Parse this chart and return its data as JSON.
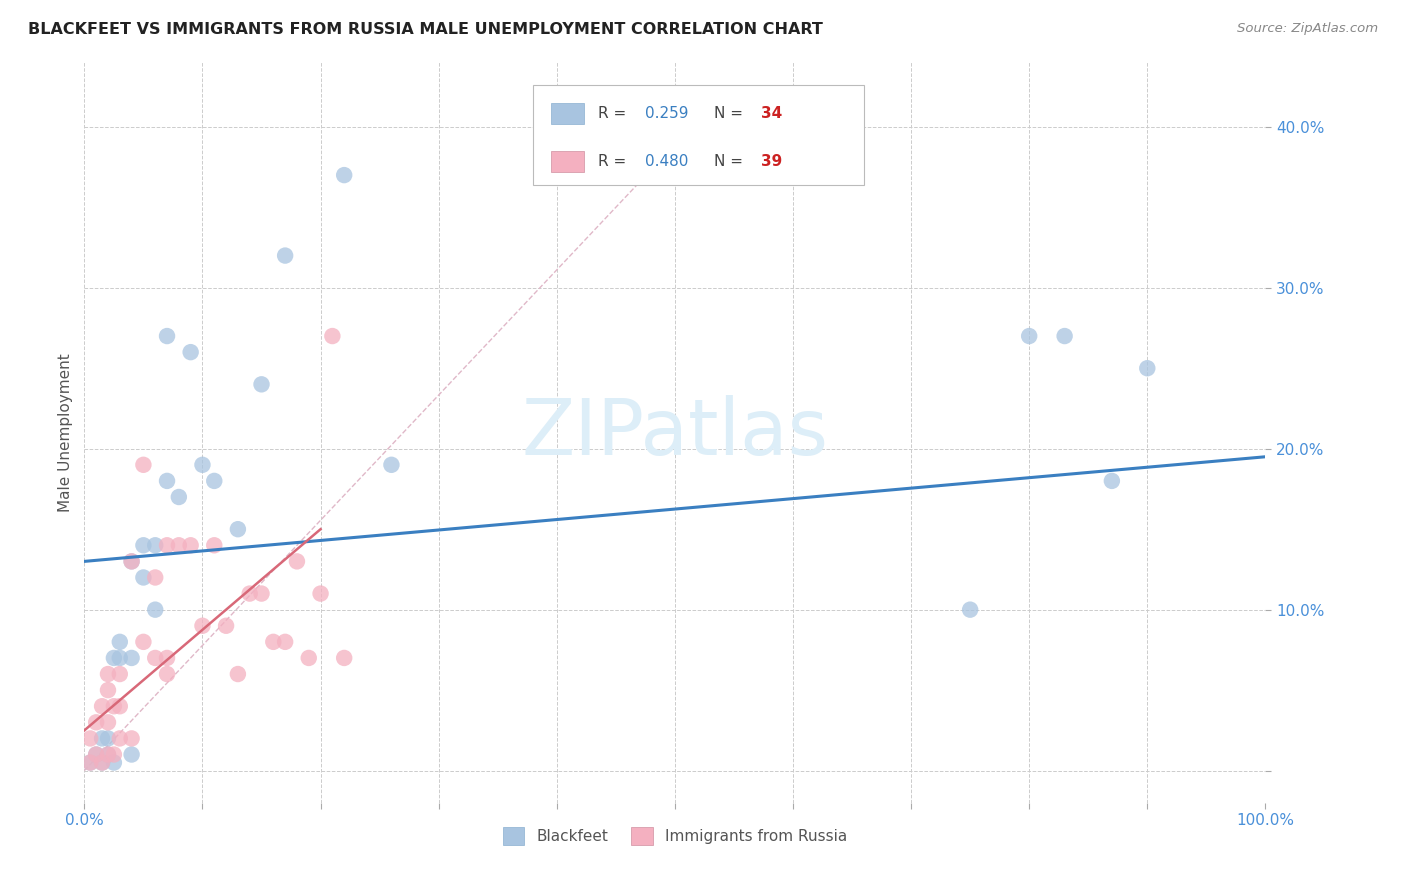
{
  "title": "BLACKFEET VS IMMIGRANTS FROM RUSSIA MALE UNEMPLOYMENT CORRELATION CHART",
  "source": "Source: ZipAtlas.com",
  "ylabel": "Male Unemployment",
  "xlim": [
    0,
    1.0
  ],
  "ylim": [
    -0.02,
    0.44
  ],
  "xticks": [
    0.0,
    0.1,
    0.2,
    0.3,
    0.4,
    0.5,
    0.6,
    0.7,
    0.8,
    0.9,
    1.0
  ],
  "xticklabels": [
    "0.0%",
    "",
    "",
    "",
    "",
    "",
    "",
    "",
    "",
    "",
    "100.0%"
  ],
  "yticks": [
    0.0,
    0.1,
    0.2,
    0.3,
    0.4
  ],
  "yticklabels": [
    "",
    "10.0%",
    "20.0%",
    "30.0%",
    "40.0%"
  ],
  "scatter_color1": "#a8c4e0",
  "scatter_color2": "#f4b0c0",
  "line_color1": "#3a7fc1",
  "line_color2": "#d86878",
  "dashed_color": "#e0b8c8",
  "watermark_color": "#ddeef8",
  "background_color": "#ffffff",
  "grid_color": "#cccccc",
  "tick_label_color": "#4a90d9",
  "bottom_legend_label1": "Blackfeet",
  "bottom_legend_label2": "Immigrants from Russia",
  "legend_R_color": "#555555",
  "legend_val_color": "#3a7fc1",
  "legend_N_label_color": "#555555",
  "legend_N_val_color": "#cc2222",
  "blue_x": [
    0.005,
    0.01,
    0.015,
    0.015,
    0.02,
    0.02,
    0.025,
    0.025,
    0.03,
    0.03,
    0.04,
    0.04,
    0.04,
    0.05,
    0.05,
    0.06,
    0.06,
    0.07,
    0.07,
    0.08,
    0.09,
    0.1,
    0.11,
    0.13,
    0.15,
    0.17,
    0.22,
    0.26,
    0.75,
    0.8,
    0.83,
    0.87,
    0.9
  ],
  "blue_y": [
    0.005,
    0.01,
    0.005,
    0.02,
    0.01,
    0.02,
    0.005,
    0.07,
    0.07,
    0.08,
    0.01,
    0.07,
    0.13,
    0.12,
    0.14,
    0.1,
    0.14,
    0.27,
    0.18,
    0.17,
    0.26,
    0.19,
    0.18,
    0.15,
    0.24,
    0.32,
    0.37,
    0.19,
    0.1,
    0.27,
    0.27,
    0.18,
    0.25
  ],
  "pink_x": [
    0.005,
    0.005,
    0.01,
    0.01,
    0.015,
    0.015,
    0.02,
    0.02,
    0.02,
    0.02,
    0.025,
    0.025,
    0.03,
    0.03,
    0.03,
    0.04,
    0.04,
    0.05,
    0.05,
    0.06,
    0.06,
    0.07,
    0.07,
    0.07,
    0.08,
    0.09,
    0.1,
    0.11,
    0.12,
    0.13,
    0.14,
    0.15,
    0.16,
    0.17,
    0.18,
    0.19,
    0.2,
    0.21,
    0.22
  ],
  "pink_y": [
    0.005,
    0.02,
    0.01,
    0.03,
    0.005,
    0.04,
    0.01,
    0.03,
    0.05,
    0.06,
    0.01,
    0.04,
    0.02,
    0.04,
    0.06,
    0.02,
    0.13,
    0.08,
    0.19,
    0.07,
    0.12,
    0.06,
    0.07,
    0.14,
    0.14,
    0.14,
    0.09,
    0.14,
    0.09,
    0.06,
    0.11,
    0.11,
    0.08,
    0.08,
    0.13,
    0.07,
    0.11,
    0.27,
    0.07
  ],
  "blue_line": [
    0.0,
    1.0,
    0.13,
    0.195
  ],
  "pink_line": [
    0.0,
    0.2,
    0.025,
    0.15
  ],
  "pink_dashed": [
    0.0,
    0.54,
    0.0,
    0.42
  ]
}
